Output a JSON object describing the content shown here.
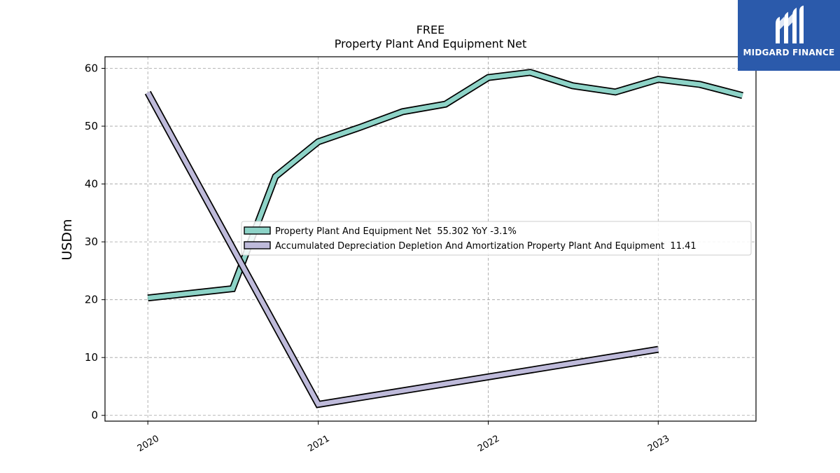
{
  "brand": {
    "name": "MIDGARD FINANCE",
    "logo_icon": "midgard-m-logo-icon",
    "color": "#2b5aab"
  },
  "chart_data": {
    "type": "line",
    "title": "FREE",
    "subtitle": "Property Plant And Equipment Net",
    "ylabel": "USDm",
    "xlabel": "",
    "xlim": [
      "2019-10-01",
      "2023-07-30"
    ],
    "ylim": [
      -1,
      62
    ],
    "x_ticks": [
      "2020",
      "2021",
      "2022",
      "2023"
    ],
    "y_ticks": [
      0,
      10,
      20,
      30,
      40,
      50,
      60
    ],
    "grid": true,
    "legend_position": "center-right",
    "series": [
      {
        "name": "Property Plant And Equipment Net  55.302 YoY -3.1%",
        "color": "#8dd3c7",
        "points": [
          [
            "2020-01-01",
            20.3
          ],
          [
            "2020-07-01",
            21.9
          ],
          [
            "2020-10-01",
            41.3
          ],
          [
            "2021-01-01",
            47.3
          ],
          [
            "2021-04-01",
            49.8
          ],
          [
            "2021-07-01",
            52.5
          ],
          [
            "2021-10-01",
            53.8
          ],
          [
            "2022-01-01",
            58.4
          ],
          [
            "2022-04-01",
            59.3
          ],
          [
            "2022-07-01",
            57.0
          ],
          [
            "2022-10-01",
            55.9
          ],
          [
            "2023-01-01",
            58.1
          ],
          [
            "2023-04-01",
            57.2
          ],
          [
            "2023-07-01",
            55.3
          ]
        ]
      },
      {
        "name": "Accumulated Depreciation Depletion And Amortization Property Plant And Equipment  11.41",
        "color": "#bebada",
        "points": [
          [
            "2020-01-01",
            55.8
          ],
          [
            "2021-01-01",
            1.9
          ],
          [
            "2023-01-01",
            11.41
          ]
        ]
      }
    ]
  }
}
